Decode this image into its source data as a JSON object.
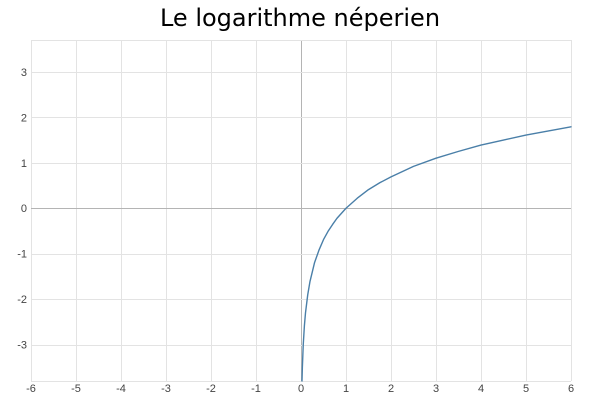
{
  "chart_data": {
    "type": "line",
    "title": "Le logarithme néperien",
    "xlabel": "",
    "ylabel": "",
    "xlim": [
      -6,
      6
    ],
    "ylim": [
      -3.8,
      3.7
    ],
    "x_ticks": [
      -6,
      -5,
      -4,
      -3,
      -2,
      -1,
      0,
      1,
      2,
      3,
      4,
      5,
      6
    ],
    "y_ticks": [
      3,
      2,
      1,
      0,
      -1,
      -2,
      -3
    ],
    "x_tick_labels": [
      "-6",
      "-5",
      "-4",
      "-3",
      "-2",
      "-1",
      "0",
      "1",
      "2",
      "3",
      "4",
      "5",
      "6"
    ],
    "y_tick_labels": [
      "3",
      "2",
      "1",
      "0",
      "-1",
      "-2",
      "-3"
    ],
    "grid": true,
    "series": [
      {
        "function": "ln(x)",
        "color": "#4a7fa8",
        "x": [
          0.022,
          0.03,
          0.05,
          0.075,
          0.1,
          0.15,
          0.2,
          0.3,
          0.4,
          0.5,
          0.6,
          0.7,
          0.8,
          0.9,
          1.0,
          1.25,
          1.5,
          1.75,
          2.0,
          2.5,
          3.0,
          3.5,
          4.0,
          4.5,
          5.0,
          5.5,
          6.0
        ],
        "y": [
          -3.82,
          -3.51,
          -3.0,
          -2.59,
          -2.3,
          -1.9,
          -1.61,
          -1.2,
          -0.92,
          -0.69,
          -0.51,
          -0.36,
          -0.22,
          -0.11,
          0.0,
          0.22,
          0.41,
          0.56,
          0.69,
          0.92,
          1.1,
          1.25,
          1.39,
          1.5,
          1.61,
          1.7,
          1.79
        ]
      }
    ]
  },
  "colors": {
    "grid": "#e3e3e3",
    "axis_zero": "#b4b4b4",
    "line": "#4a7fa8"
  }
}
